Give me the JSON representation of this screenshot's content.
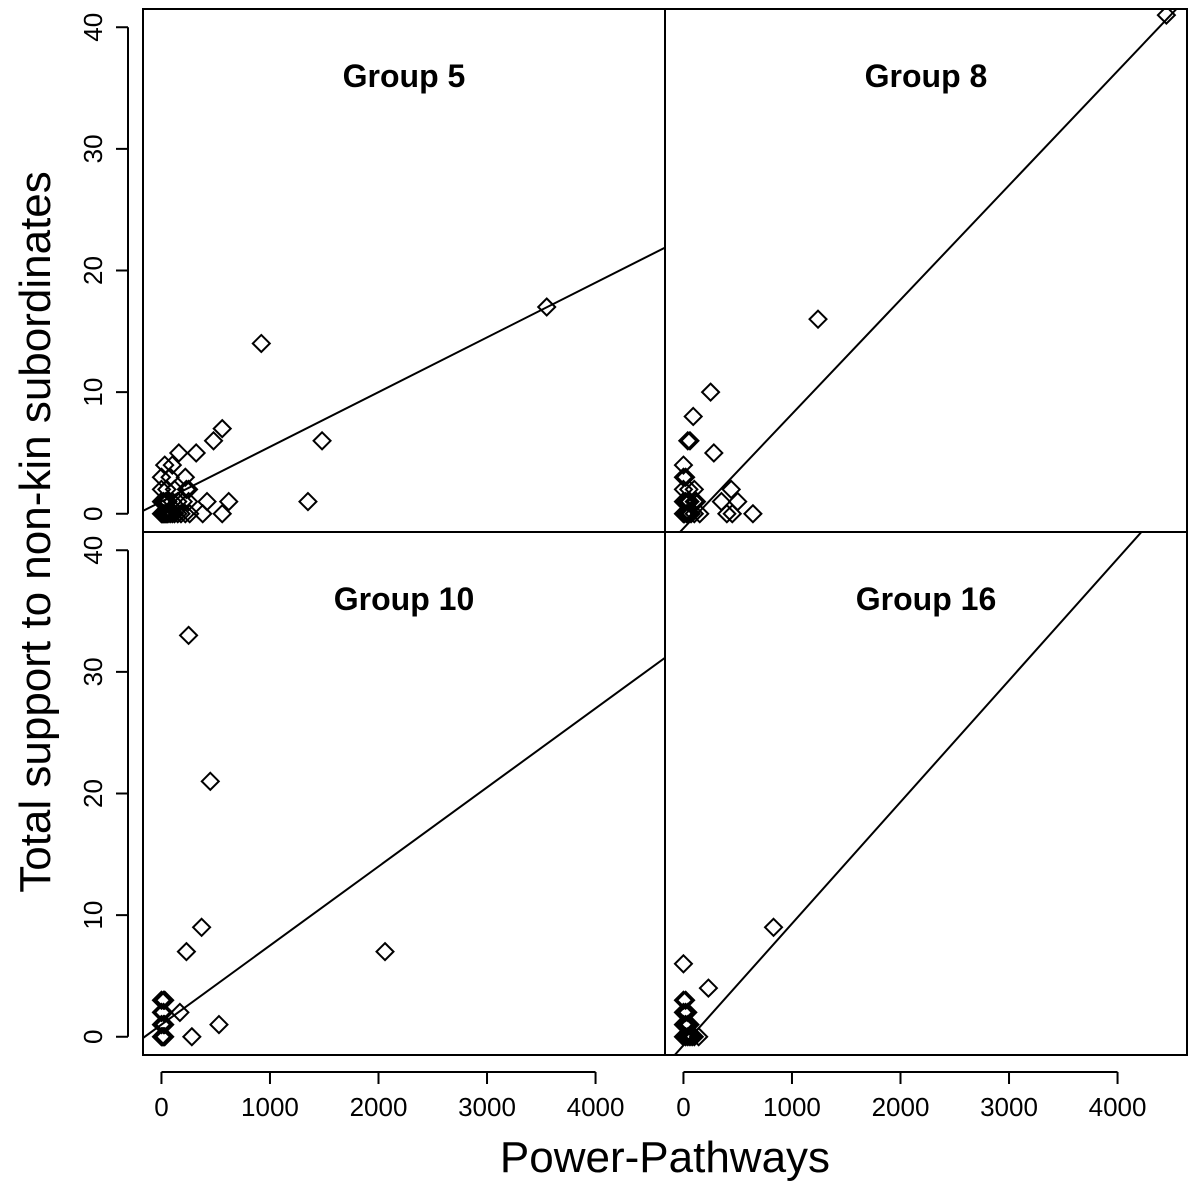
{
  "chart_data": {
    "type": "scatter",
    "layout": "2x2 panels",
    "xlabel": "Power-Pathways",
    "ylabel": "Total support to non-kin subordinates",
    "xlim": [
      -170,
      4640
    ],
    "ylim": [
      -1.5,
      41.5
    ],
    "x_ticks": [
      0,
      1000,
      2000,
      3000,
      4000
    ],
    "x_tick_labels": [
      "0",
      "1000",
      "2000",
      "3000",
      "4000"
    ],
    "y_ticks": [
      0,
      10,
      20,
      30,
      40
    ],
    "y_tick_labels": [
      "0",
      "10",
      "20",
      "30",
      "40"
    ],
    "marker": "diamond",
    "panels": [
      {
        "title": "Group 5",
        "position": "top-left",
        "fit_line": {
          "intercept": 1.0,
          "slope": 0.0045
        },
        "points": [
          [
            0,
            0
          ],
          [
            10,
            0
          ],
          [
            20,
            0
          ],
          [
            30,
            0
          ],
          [
            40,
            0
          ],
          [
            50,
            0
          ],
          [
            60,
            0
          ],
          [
            80,
            0
          ],
          [
            100,
            0
          ],
          [
            120,
            0
          ],
          [
            150,
            0
          ],
          [
            180,
            0
          ],
          [
            220,
            0
          ],
          [
            260,
            0
          ],
          [
            0,
            1
          ],
          [
            20,
            1
          ],
          [
            40,
            1
          ],
          [
            60,
            1
          ],
          [
            100,
            1
          ],
          [
            150,
            1
          ],
          [
            200,
            1
          ],
          [
            250,
            1
          ],
          [
            0,
            2
          ],
          [
            50,
            2
          ],
          [
            120,
            2
          ],
          [
            230,
            2
          ],
          [
            250,
            2
          ],
          [
            0,
            3
          ],
          [
            80,
            3
          ],
          [
            220,
            3
          ],
          [
            100,
            4
          ],
          [
            30,
            4
          ],
          [
            160,
            5
          ],
          [
            320,
            5
          ],
          [
            480,
            6
          ],
          [
            560,
            7
          ],
          [
            920,
            14
          ],
          [
            380,
            0
          ],
          [
            560,
            0
          ],
          [
            420,
            1
          ],
          [
            620,
            1
          ],
          [
            1350,
            1
          ],
          [
            1480,
            6
          ],
          [
            3550,
            17
          ]
        ]
      },
      {
        "title": "Group 8",
        "position": "top-right",
        "fit_line": {
          "intercept": -1.2,
          "slope": 0.0094
        },
        "points": [
          [
            0,
            0
          ],
          [
            10,
            0
          ],
          [
            30,
            0
          ],
          [
            50,
            0
          ],
          [
            70,
            0
          ],
          [
            100,
            0
          ],
          [
            150,
            0
          ],
          [
            0,
            1
          ],
          [
            20,
            1
          ],
          [
            40,
            1
          ],
          [
            60,
            1
          ],
          [
            100,
            1
          ],
          [
            120,
            1
          ],
          [
            0,
            2
          ],
          [
            50,
            2
          ],
          [
            100,
            2
          ],
          [
            0,
            3
          ],
          [
            20,
            3
          ],
          [
            0,
            4
          ],
          [
            40,
            6
          ],
          [
            60,
            6
          ],
          [
            90,
            8
          ],
          [
            250,
            10
          ],
          [
            280,
            5
          ],
          [
            400,
            0
          ],
          [
            450,
            0
          ],
          [
            640,
            0
          ],
          [
            350,
            1
          ],
          [
            500,
            1
          ],
          [
            440,
            2
          ],
          [
            1240,
            16
          ],
          [
            4450,
            41
          ]
        ]
      },
      {
        "title": "Group 10",
        "position": "bottom-left",
        "fit_line": {
          "intercept": 1.0,
          "slope": 0.0065
        },
        "points": [
          [
            0,
            0
          ],
          [
            10,
            0
          ],
          [
            20,
            0
          ],
          [
            30,
            0
          ],
          [
            0,
            1
          ],
          [
            20,
            1
          ],
          [
            30,
            1
          ],
          [
            0,
            2
          ],
          [
            20,
            2
          ],
          [
            170,
            2
          ],
          [
            0,
            3
          ],
          [
            20,
            3
          ],
          [
            30,
            3
          ],
          [
            280,
            0
          ],
          [
            530,
            1
          ],
          [
            230,
            7
          ],
          [
            370,
            9
          ],
          [
            450,
            21
          ],
          [
            250,
            33
          ],
          [
            2060,
            7
          ]
        ]
      },
      {
        "title": "Group 16",
        "position": "bottom-right",
        "fit_line": {
          "intercept": -0.7,
          "slope": 0.01
        },
        "points": [
          [
            0,
            0
          ],
          [
            20,
            0
          ],
          [
            40,
            0
          ],
          [
            60,
            0
          ],
          [
            80,
            0
          ],
          [
            100,
            0
          ],
          [
            140,
            0
          ],
          [
            0,
            1
          ],
          [
            20,
            1
          ],
          [
            40,
            1
          ],
          [
            60,
            1
          ],
          [
            0,
            2
          ],
          [
            20,
            2
          ],
          [
            40,
            2
          ],
          [
            0,
            3
          ],
          [
            20,
            3
          ],
          [
            0,
            6
          ],
          [
            230,
            4
          ],
          [
            830,
            9
          ]
        ]
      }
    ]
  }
}
